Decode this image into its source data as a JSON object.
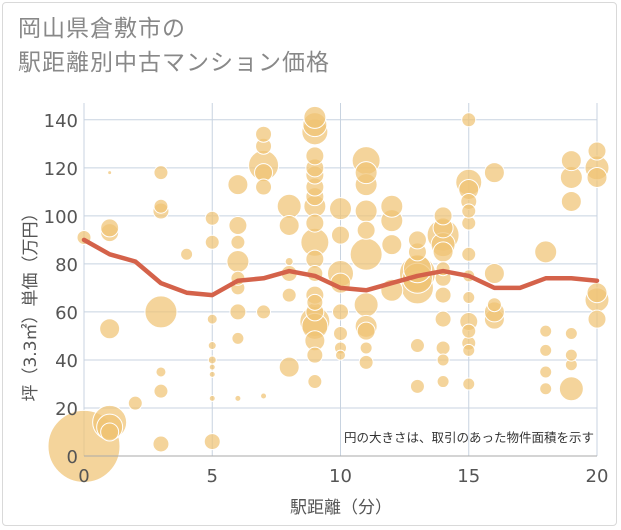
{
  "title_line1": "岡山県倉敷市の",
  "title_line2": "駅距離別中古マンション価格",
  "note": "円の大きさは、取引のあった物件面積を示す",
  "colors": {
    "bubble_fill": "#f0c375",
    "bubble_stroke": "#ffffff",
    "line": "#d4624a",
    "grid": "#c8d3e0",
    "text": "#555555"
  },
  "chart_data": {
    "type": "scatter",
    "xlabel": "駅距離（分）",
    "ylabel": "坪（3.3㎡）単価（万円）",
    "xlim": [
      0,
      20
    ],
    "ylim": [
      0,
      147
    ],
    "xticks": [
      0,
      5,
      10,
      15,
      20
    ],
    "yticks": [
      0,
      20,
      40,
      60,
      80,
      100,
      120,
      140
    ],
    "grid": true,
    "bubble_size_meaning": "物件面積",
    "points": [
      {
        "x": 0,
        "y": 4,
        "r": 36
      },
      {
        "x": 1,
        "y": 14,
        "r": 17
      },
      {
        "x": 1,
        "y": 12,
        "r": 13
      },
      {
        "x": 1,
        "y": 10,
        "r": 9
      },
      {
        "x": 1,
        "y": 53,
        "r": 10
      },
      {
        "x": 1,
        "y": 93,
        "r": 9
      },
      {
        "x": 1,
        "y": 95,
        "r": 9
      },
      {
        "x": 1,
        "y": 118,
        "r": 2
      },
      {
        "x": 0,
        "y": 91,
        "r": 7
      },
      {
        "x": 2,
        "y": 22,
        "r": 7
      },
      {
        "x": 3,
        "y": 5,
        "r": 8
      },
      {
        "x": 3,
        "y": 27,
        "r": 7
      },
      {
        "x": 3,
        "y": 35,
        "r": 5
      },
      {
        "x": 3,
        "y": 60,
        "r": 16
      },
      {
        "x": 3,
        "y": 102,
        "r": 8
      },
      {
        "x": 3,
        "y": 104,
        "r": 7
      },
      {
        "x": 3,
        "y": 118,
        "r": 7
      },
      {
        "x": 4,
        "y": 84,
        "r": 6
      },
      {
        "x": 5,
        "y": 6,
        "r": 8
      },
      {
        "x": 5,
        "y": 24,
        "r": 3
      },
      {
        "x": 5,
        "y": 34,
        "r": 3
      },
      {
        "x": 5,
        "y": 37,
        "r": 3
      },
      {
        "x": 5,
        "y": 40,
        "r": 4
      },
      {
        "x": 5,
        "y": 46,
        "r": 4
      },
      {
        "x": 5,
        "y": 57,
        "r": 5
      },
      {
        "x": 5,
        "y": 89,
        "r": 7
      },
      {
        "x": 5,
        "y": 99,
        "r": 7
      },
      {
        "x": 6,
        "y": 24,
        "r": 3
      },
      {
        "x": 6,
        "y": 49,
        "r": 6
      },
      {
        "x": 6,
        "y": 60,
        "r": 8
      },
      {
        "x": 6,
        "y": 70,
        "r": 7
      },
      {
        "x": 6,
        "y": 74,
        "r": 7
      },
      {
        "x": 6,
        "y": 81,
        "r": 11
      },
      {
        "x": 6,
        "y": 89,
        "r": 7
      },
      {
        "x": 6,
        "y": 96,
        "r": 9
      },
      {
        "x": 6,
        "y": 113,
        "r": 10
      },
      {
        "x": 7,
        "y": 25,
        "r": 3
      },
      {
        "x": 7,
        "y": 60,
        "r": 7
      },
      {
        "x": 7,
        "y": 112,
        "r": 8
      },
      {
        "x": 7,
        "y": 118,
        "r": 9
      },
      {
        "x": 7,
        "y": 121,
        "r": 15
      },
      {
        "x": 7,
        "y": 129,
        "r": 8
      },
      {
        "x": 7,
        "y": 134,
        "r": 8
      },
      {
        "x": 8,
        "y": 37,
        "r": 10
      },
      {
        "x": 8,
        "y": 67,
        "r": 7
      },
      {
        "x": 8,
        "y": 76,
        "r": 8
      },
      {
        "x": 8,
        "y": 81,
        "r": 4
      },
      {
        "x": 8,
        "y": 96,
        "r": 10
      },
      {
        "x": 8,
        "y": 104,
        "r": 12
      },
      {
        "x": 9,
        "y": 31,
        "r": 7
      },
      {
        "x": 9,
        "y": 42,
        "r": 8
      },
      {
        "x": 9,
        "y": 48,
        "r": 10
      },
      {
        "x": 9,
        "y": 54,
        "r": 13
      },
      {
        "x": 9,
        "y": 56,
        "r": 15
      },
      {
        "x": 9,
        "y": 60,
        "r": 9
      },
      {
        "x": 9,
        "y": 64,
        "r": 8
      },
      {
        "x": 9,
        "y": 67,
        "r": 9
      },
      {
        "x": 9,
        "y": 76,
        "r": 8
      },
      {
        "x": 9,
        "y": 82,
        "r": 9
      },
      {
        "x": 9,
        "y": 89,
        "r": 14
      },
      {
        "x": 9,
        "y": 97,
        "r": 9
      },
      {
        "x": 9,
        "y": 104,
        "r": 11
      },
      {
        "x": 9,
        "y": 108,
        "r": 9
      },
      {
        "x": 9,
        "y": 112,
        "r": 9
      },
      {
        "x": 9,
        "y": 117,
        "r": 9
      },
      {
        "x": 9,
        "y": 120,
        "r": 9
      },
      {
        "x": 9,
        "y": 125,
        "r": 9
      },
      {
        "x": 9,
        "y": 135,
        "r": 13
      },
      {
        "x": 9,
        "y": 138,
        "r": 12
      },
      {
        "x": 9,
        "y": 141,
        "r": 11
      },
      {
        "x": 10,
        "y": 42,
        "r": 5
      },
      {
        "x": 10,
        "y": 45,
        "r": 6
      },
      {
        "x": 10,
        "y": 51,
        "r": 7
      },
      {
        "x": 10,
        "y": 60,
        "r": 8
      },
      {
        "x": 10,
        "y": 72,
        "r": 10
      },
      {
        "x": 10,
        "y": 76,
        "r": 13
      },
      {
        "x": 10,
        "y": 92,
        "r": 9
      },
      {
        "x": 10,
        "y": 103,
        "r": 11
      },
      {
        "x": 11,
        "y": 39,
        "r": 7
      },
      {
        "x": 11,
        "y": 45,
        "r": 6
      },
      {
        "x": 11,
        "y": 52,
        "r": 9
      },
      {
        "x": 11,
        "y": 54,
        "r": 11
      },
      {
        "x": 11,
        "y": 63,
        "r": 12
      },
      {
        "x": 11,
        "y": 84,
        "r": 16
      },
      {
        "x": 11,
        "y": 94,
        "r": 9
      },
      {
        "x": 11,
        "y": 102,
        "r": 11
      },
      {
        "x": 11,
        "y": 113,
        "r": 11
      },
      {
        "x": 11,
        "y": 118,
        "r": 11
      },
      {
        "x": 11,
        "y": 123,
        "r": 14
      },
      {
        "x": 12,
        "y": 69,
        "r": 11
      },
      {
        "x": 12,
        "y": 88,
        "r": 10
      },
      {
        "x": 12,
        "y": 98,
        "r": 11
      },
      {
        "x": 12,
        "y": 104,
        "r": 11
      },
      {
        "x": 13,
        "y": 29,
        "r": 7
      },
      {
        "x": 13,
        "y": 46,
        "r": 7
      },
      {
        "x": 13,
        "y": 70,
        "r": 16
      },
      {
        "x": 13,
        "y": 74,
        "r": 15
      },
      {
        "x": 13,
        "y": 76,
        "r": 18
      },
      {
        "x": 13,
        "y": 78,
        "r": 14
      },
      {
        "x": 13,
        "y": 85,
        "r": 9
      },
      {
        "x": 13,
        "y": 90,
        "r": 9
      },
      {
        "x": 14,
        "y": 31,
        "r": 6
      },
      {
        "x": 14,
        "y": 40,
        "r": 6
      },
      {
        "x": 14,
        "y": 45,
        "r": 7
      },
      {
        "x": 14,
        "y": 57,
        "r": 8
      },
      {
        "x": 14,
        "y": 67,
        "r": 8
      },
      {
        "x": 14,
        "y": 74,
        "r": 8
      },
      {
        "x": 14,
        "y": 78,
        "r": 7
      },
      {
        "x": 14,
        "y": 85,
        "r": 10
      },
      {
        "x": 14,
        "y": 88,
        "r": 12
      },
      {
        "x": 14,
        "y": 92,
        "r": 16
      },
      {
        "x": 14,
        "y": 95,
        "r": 10
      },
      {
        "x": 14,
        "y": 100,
        "r": 9
      },
      {
        "x": 15,
        "y": 30,
        "r": 6
      },
      {
        "x": 15,
        "y": 44,
        "r": 6
      },
      {
        "x": 15,
        "y": 47,
        "r": 7
      },
      {
        "x": 15,
        "y": 52,
        "r": 7
      },
      {
        "x": 15,
        "y": 56,
        "r": 9
      },
      {
        "x": 15,
        "y": 66,
        "r": 6
      },
      {
        "x": 15,
        "y": 75,
        "r": 6
      },
      {
        "x": 15,
        "y": 84,
        "r": 7
      },
      {
        "x": 15,
        "y": 97,
        "r": 7
      },
      {
        "x": 15,
        "y": 102,
        "r": 7
      },
      {
        "x": 15,
        "y": 106,
        "r": 8
      },
      {
        "x": 15,
        "y": 111,
        "r": 10
      },
      {
        "x": 15,
        "y": 114,
        "r": 13
      },
      {
        "x": 15,
        "y": 140,
        "r": 7
      },
      {
        "x": 16,
        "y": 57,
        "r": 10
      },
      {
        "x": 16,
        "y": 60,
        "r": 10
      },
      {
        "x": 16,
        "y": 63,
        "r": 7
      },
      {
        "x": 16,
        "y": 76,
        "r": 10
      },
      {
        "x": 16,
        "y": 118,
        "r": 10
      },
      {
        "x": 18,
        "y": 28,
        "r": 6
      },
      {
        "x": 18,
        "y": 35,
        "r": 6
      },
      {
        "x": 18,
        "y": 44,
        "r": 6
      },
      {
        "x": 18,
        "y": 52,
        "r": 6
      },
      {
        "x": 18,
        "y": 85,
        "r": 11
      },
      {
        "x": 19,
        "y": 28,
        "r": 12
      },
      {
        "x": 19,
        "y": 38,
        "r": 6
      },
      {
        "x": 19,
        "y": 42,
        "r": 6
      },
      {
        "x": 19,
        "y": 51,
        "r": 6
      },
      {
        "x": 19,
        "y": 106,
        "r": 10
      },
      {
        "x": 19,
        "y": 116,
        "r": 11
      },
      {
        "x": 19,
        "y": 123,
        "r": 10
      },
      {
        "x": 20,
        "y": 57,
        "r": 9
      },
      {
        "x": 20,
        "y": 65,
        "r": 12
      },
      {
        "x": 20,
        "y": 68,
        "r": 10
      },
      {
        "x": 20,
        "y": 116,
        "r": 10
      },
      {
        "x": 20,
        "y": 120,
        "r": 12
      },
      {
        "x": 20,
        "y": 127,
        "r": 9
      }
    ],
    "trend": {
      "x": [
        0,
        1,
        2,
        3,
        4,
        5,
        6,
        7,
        8,
        9,
        10,
        11,
        12,
        13,
        14,
        15,
        16,
        17,
        18,
        19,
        20
      ],
      "y": [
        90,
        84,
        81,
        72,
        68,
        67,
        73,
        74,
        77,
        75,
        70,
        69,
        72,
        75,
        77,
        75,
        70,
        70,
        74,
        74,
        73
      ]
    }
  }
}
